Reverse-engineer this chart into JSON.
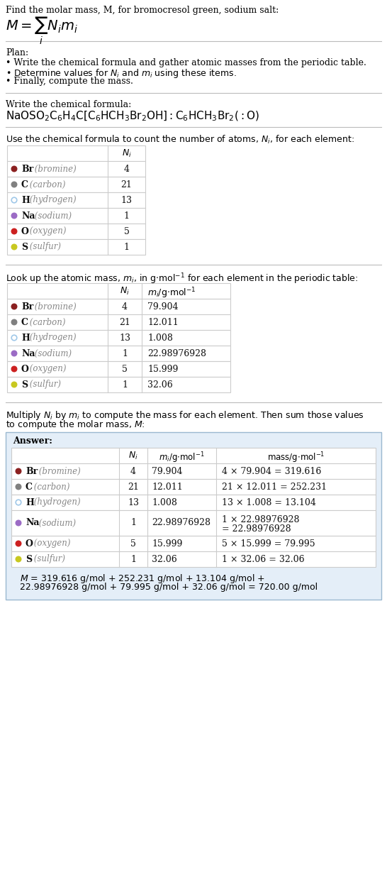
{
  "title_text": "Find the molar mass, M, for bromocresol green, sodium salt:",
  "plan_title": "Plan:",
  "plan_items": [
    "• Write the chemical formula and gather atomic masses from the periodic table.",
    "• Determine values for $N_i$ and $m_i$ using these items.",
    "• Finally, compute the mass."
  ],
  "formula_title": "Write the chemical formula:",
  "table1_title": "Use the chemical formula to count the number of atoms, $N_i$, for each element:",
  "table2_title": "Look up the atomic mass, $m_i$, in g$\\cdot$mol$^{-1}$ for each element in the periodic table:",
  "table3_line1": "Multiply $N_i$ by $m_i$ to compute the mass for each element. Then sum those values",
  "table3_line2": "to compute the molar mass, $M$:",
  "elements": [
    {
      "symbol": "Br",
      "name": "bromine",
      "Ni": "4",
      "mi": "79.904",
      "mass": "4 × 79.904 = 319.616",
      "dot_color": "#8B2020",
      "dot_filled": true
    },
    {
      "symbol": "C",
      "name": "carbon",
      "Ni": "21",
      "mi": "12.011",
      "mass": "21 × 12.011 = 252.231",
      "dot_color": "#808080",
      "dot_filled": true
    },
    {
      "symbol": "H",
      "name": "hydrogen",
      "Ni": "13",
      "mi": "1.008",
      "mass": "13 × 1.008 = 13.104",
      "dot_color": "#A0C8E8",
      "dot_filled": false
    },
    {
      "symbol": "Na",
      "name": "sodium",
      "Ni": "1",
      "mi": "22.98976928",
      "mass": "1 × 22.98976928\n= 22.98976928",
      "dot_color": "#9B6BC5",
      "dot_filled": true
    },
    {
      "symbol": "O",
      "name": "oxygen",
      "Ni": "5",
      "mi": "15.999",
      "mass": "5 × 15.999 = 79.995",
      "dot_color": "#CC2020",
      "dot_filled": true
    },
    {
      "symbol": "S",
      "name": "sulfur",
      "Ni": "1",
      "mi": "32.06",
      "mass": "1 × 32.06 = 32.06",
      "dot_color": "#C8C820",
      "dot_filled": true
    }
  ],
  "final_line1": "$M$ = 319.616 g/mol + 252.231 g/mol + 13.104 g/mol +",
  "final_line2": "22.98976928 g/mol + 79.995 g/mol + 32.06 g/mol = 720.00 g/mol",
  "answer_bg": "#E4EEF8",
  "answer_border": "#9BB8D0",
  "bg_color": "#FFFFFF",
  "divider_color": "#BBBBBB",
  "table_border_color": "#CCCCCC"
}
